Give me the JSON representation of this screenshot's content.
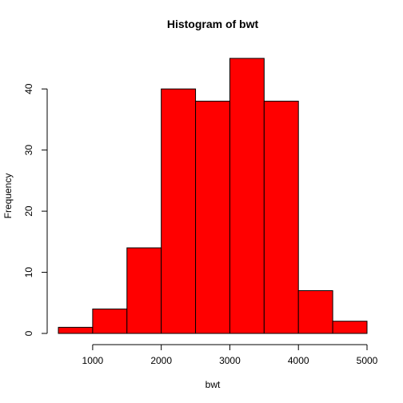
{
  "chart_data": {
    "type": "bar",
    "title": "Histogram of bwt",
    "xlabel": "bwt",
    "ylabel": "Frequency",
    "bins": [
      {
        "start": 500,
        "end": 1000,
        "count": 1
      },
      {
        "start": 1000,
        "end": 1500,
        "count": 4
      },
      {
        "start": 1500,
        "end": 2000,
        "count": 14
      },
      {
        "start": 2000,
        "end": 2500,
        "count": 40
      },
      {
        "start": 2500,
        "end": 3000,
        "count": 38
      },
      {
        "start": 3000,
        "end": 3500,
        "count": 45
      },
      {
        "start": 3500,
        "end": 4000,
        "count": 38
      },
      {
        "start": 4000,
        "end": 4500,
        "count": 7
      },
      {
        "start": 4500,
        "end": 5000,
        "count": 2
      }
    ],
    "x_ticks": [
      1000,
      2000,
      3000,
      4000,
      5000
    ],
    "y_ticks": [
      0,
      10,
      20,
      30,
      40
    ],
    "xlim": [
      500,
      5000
    ],
    "ylim": [
      0,
      45
    ],
    "bar_color": "#ff0000",
    "grid": false
  }
}
